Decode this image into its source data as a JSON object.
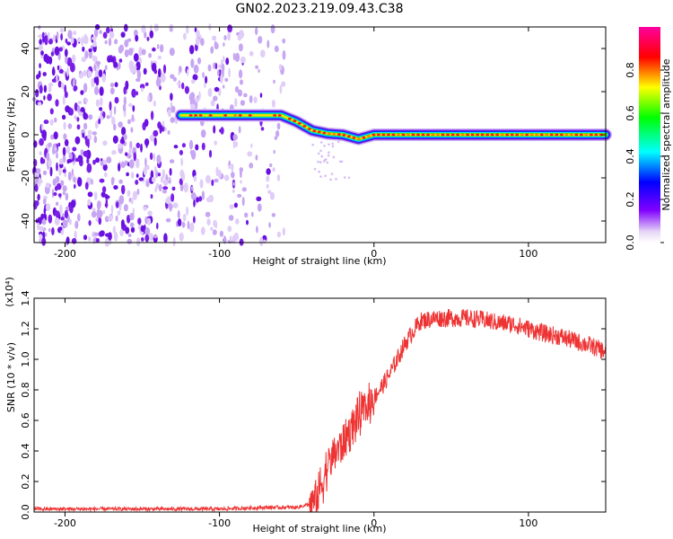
{
  "title": "GN02.2023.219.09.43.C38",
  "chart_data": [
    {
      "type": "heatmap",
      "name": "spectrogram",
      "xlabel": "Height of straight line (km)",
      "ylabel": "Frequency (Hz)",
      "xlim": [
        -220,
        150
      ],
      "ylim": [
        -50,
        50
      ],
      "xticks": [
        -200,
        -100,
        0,
        100
      ],
      "xtick_labels": [
        "-200",
        "-100",
        "0",
        "100"
      ],
      "yticks": [
        -40,
        -20,
        0,
        20,
        40
      ],
      "ytick_labels": [
        "-40",
        "-20",
        "0",
        "20",
        "40"
      ],
      "ridge": {
        "x": [
          -125,
          -100,
          -60,
          -50,
          -40,
          -30,
          -20,
          -10,
          0,
          20,
          60,
          100,
          150
        ],
        "y": [
          9,
          9,
          9,
          6,
          2,
          0.5,
          0,
          -2,
          0,
          0,
          0,
          0,
          0
        ]
      },
      "noise_region_x": [
        -220,
        -58
      ],
      "colorbar": {
        "label": "Normalized spectral amplitude",
        "range": [
          0,
          1
        ],
        "ticks": [
          0,
          0.2,
          0.4,
          0.6,
          0.8
        ],
        "tick_labels": [
          "0.0",
          "0.2",
          "0.4",
          "0.6",
          "0.8"
        ],
        "colormap": [
          "#e6d6f5",
          "#8000ff",
          "#0000ff",
          "#00ffff",
          "#00ff00",
          "#ffff00",
          "#ff0000",
          "#ff00ff"
        ]
      }
    },
    {
      "type": "line",
      "name": "snr",
      "xlabel": "Height of straight line (km)",
      "ylabel": "SNR (10 * v/v)",
      "y_multiplier_label": "(x10⁴)",
      "xlim": [
        -220,
        150
      ],
      "ylim": [
        0,
        1.4
      ],
      "xticks": [
        -200,
        -100,
        0,
        100
      ],
      "xtick_labels": [
        "-200",
        "-100",
        "0",
        "100"
      ],
      "yticks": [
        0,
        0.2,
        0.4,
        0.6,
        0.8,
        1.0,
        1.2,
        1.4
      ],
      "ytick_labels": [
        "0.0",
        "0.2",
        "0.4",
        "0.6",
        "0.8",
        "1.0",
        "1.2",
        "1.4"
      ],
      "color": "#ee3333",
      "series": [
        {
          "name": "SNR",
          "x": [
            -220,
            -200,
            -150,
            -100,
            -70,
            -50,
            -42,
            -38,
            -35,
            -30,
            -25,
            -20,
            -15,
            -10,
            -5,
            0,
            5,
            10,
            15,
            20,
            25,
            30,
            40,
            50,
            60,
            70,
            80,
            90,
            100,
            110,
            120,
            130,
            140,
            150
          ],
          "y": [
            0.02,
            0.02,
            0.02,
            0.02,
            0.03,
            0.03,
            0.05,
            0.08,
            0.15,
            0.3,
            0.4,
            0.45,
            0.55,
            0.62,
            0.68,
            0.75,
            0.82,
            0.9,
            1.0,
            1.1,
            1.18,
            1.25,
            1.27,
            1.27,
            1.27,
            1.26,
            1.24,
            1.23,
            1.2,
            1.17,
            1.15,
            1.12,
            1.09,
            1.05
          ]
        }
      ]
    }
  ]
}
